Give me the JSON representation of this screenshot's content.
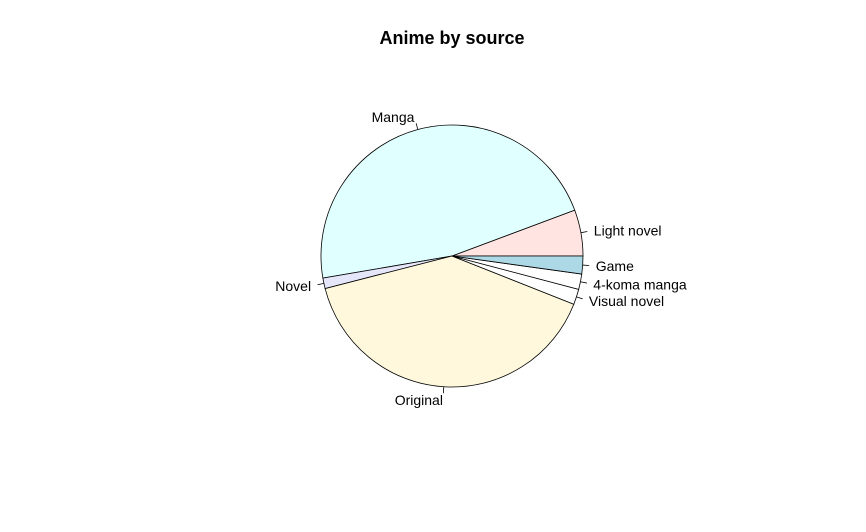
{
  "chart_data": {
    "type": "pie",
    "title": "Anime by source",
    "start_angle_deg": 0,
    "direction": "counterclockwise",
    "slices": [
      {
        "label": "Light novel",
        "value": 5.7,
        "color": "#FFE4E1"
      },
      {
        "label": "Manga",
        "value": 47.0,
        "color": "#E0FFFF"
      },
      {
        "label": "Novel",
        "value": 1.3,
        "color": "#E6E6FA"
      },
      {
        "label": "Original",
        "value": 40.0,
        "color": "#FFF8DC"
      },
      {
        "label": "Visual novel",
        "value": 1.9,
        "color": "#FFFFFF"
      },
      {
        "label": "4-koma manga",
        "value": 1.9,
        "color": "#FFFFFF"
      },
      {
        "label": "Game",
        "value": 2.2,
        "color": "#ADD8E6"
      }
    ]
  }
}
